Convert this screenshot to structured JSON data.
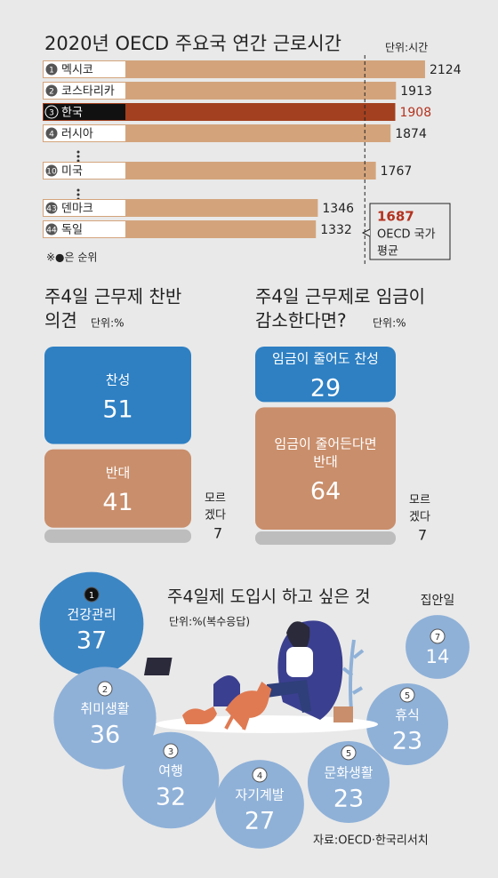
{
  "chart_data": [
    {
      "type": "bar",
      "orientation": "horizontal",
      "title": "2020년 OECD 주요국 연간 근로시간",
      "unit": "단위:시간",
      "ranks": [
        1,
        2,
        3,
        4,
        10,
        43,
        44
      ],
      "categories": [
        "멕시코",
        "코스타리카",
        "한국",
        "러시아",
        "미국",
        "덴마크",
        "독일"
      ],
      "values": [
        2124,
        1913,
        1908,
        1874,
        1767,
        1346,
        1332
      ],
      "colors": [
        "#d3a47c",
        "#d3a47c",
        "#a3401f",
        "#d3a47c",
        "#d3a47c",
        "#d3a47c",
        "#d3a47c"
      ],
      "value_label_colors": [
        "#222222",
        "#222222",
        "#b3321f",
        "#222222",
        "#222222",
        "#222222",
        "#222222"
      ],
      "xlim": [
        -650,
        2150
      ],
      "reference_line": {
        "value": 1687,
        "label": [
          "OECD 국가",
          "평균"
        ],
        "color": "#b3321f"
      },
      "note": "※●은 순위"
    },
    {
      "type": "stacked_bar",
      "title": [
        "주4일 근무제 찬반",
        "의견"
      ],
      "unit": "단위:%",
      "categories": [
        [
          "찬성"
        ],
        [
          "반대"
        ],
        [
          "모르",
          "겠다"
        ]
      ],
      "values": [
        51,
        41,
        7
      ],
      "colors": [
        "#2e80c3",
        "#c98e6b",
        "#bdbdbd"
      ]
    },
    {
      "type": "stacked_bar",
      "title": [
        "주4일  근무제로 임금이",
        "감소한다면?"
      ],
      "unit": "단위:%",
      "categories": [
        [
          "임금이 줄어도 찬성"
        ],
        [
          "임금이 줄어든다면",
          "반대"
        ],
        [
          "모르",
          "겠다"
        ]
      ],
      "values": [
        29,
        64,
        7
      ],
      "colors": [
        "#2e80c3",
        "#c98e6b",
        "#bdbdbd"
      ]
    },
    {
      "type": "bubble",
      "title": "주4일제 도입시 하고 싶은 것",
      "unit": "단위:%(복수응답)",
      "ranks": [
        1,
        2,
        3,
        4,
        5,
        5,
        7
      ],
      "categories": [
        "건강관리",
        "취미생활",
        "여행",
        "자기계발",
        "문화생활",
        "휴식",
        "집안일"
      ],
      "values": [
        37,
        36,
        32,
        27,
        23,
        23,
        14
      ],
      "colors": [
        "#3d86c4",
        "#8fb1d8",
        "#8fb1d8",
        "#8fb1d8",
        "#8fb1d8",
        "#8fb1d8",
        "#8fb1d8"
      ]
    }
  ],
  "source": "자료:OECD·한국리서치"
}
